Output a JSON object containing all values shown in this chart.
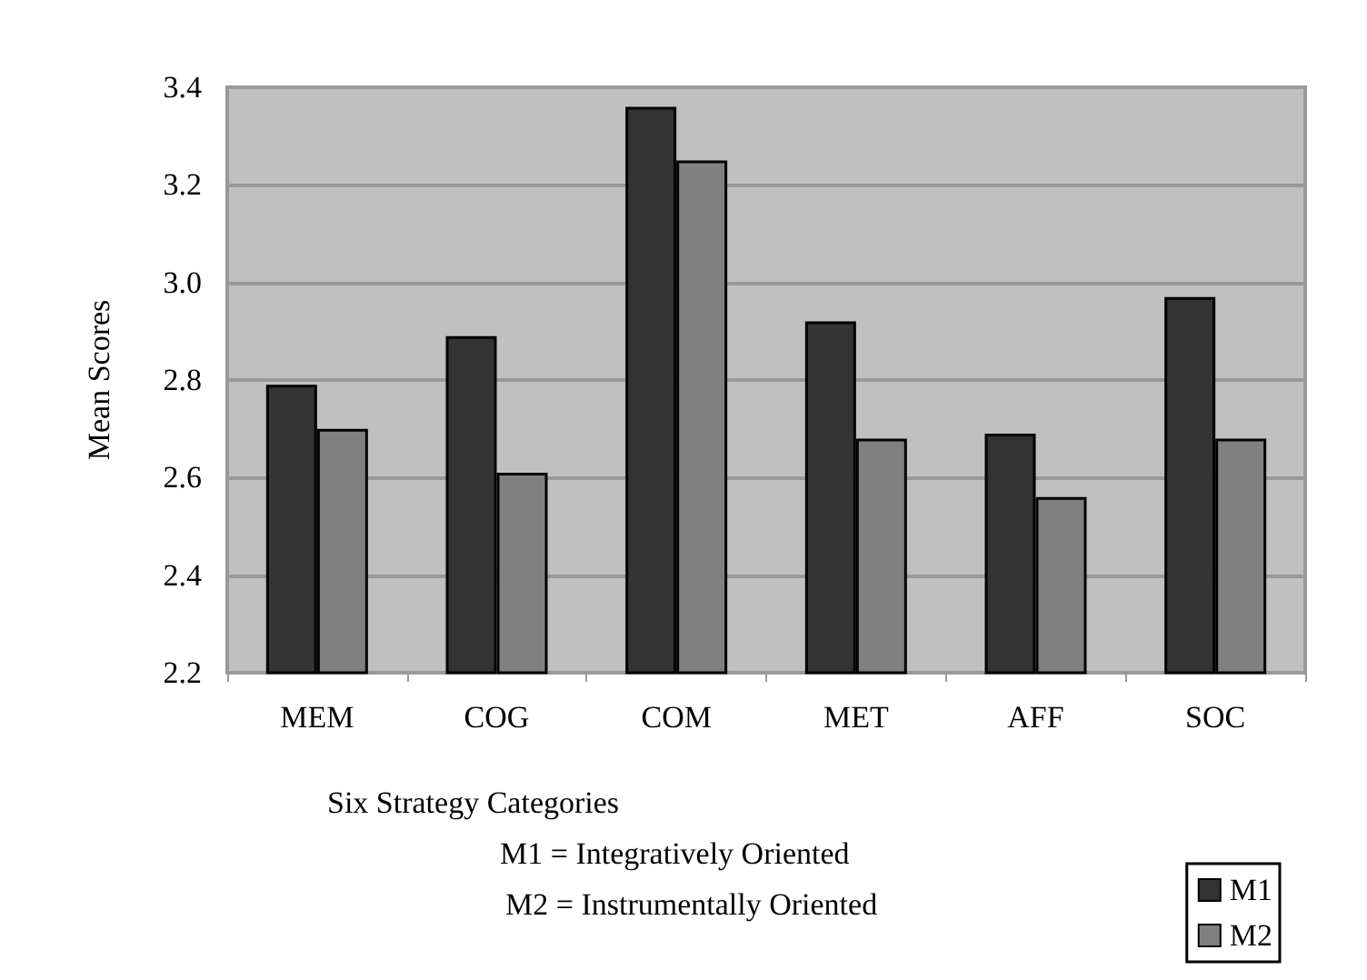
{
  "chart_data": {
    "type": "bar",
    "ylabel": "Mean Scores",
    "xlabel": "Six Strategy Categories",
    "annotations": [
      "M1 = Integratively Oriented",
      "M2 = Instrumentally Oriented"
    ],
    "categories": [
      "MEM",
      "COG",
      "COM",
      "MET",
      "AFF",
      "SOC"
    ],
    "series": [
      {
        "name": "M1",
        "color": "#333333",
        "values": [
          2.79,
          2.89,
          3.36,
          2.92,
          2.69,
          2.97
        ]
      },
      {
        "name": "M2",
        "color": "#808080",
        "values": [
          2.7,
          2.61,
          3.25,
          2.68,
          2.56,
          2.68
        ]
      }
    ],
    "ylim": [
      2.2,
      3.4
    ],
    "yticks": [
      2.2,
      2.4,
      2.6,
      2.8,
      {
        "value": 3,
        "label": "3.0"
      },
      3.2,
      3.4
    ],
    "grid": "y",
    "legend": "bottom right"
  }
}
